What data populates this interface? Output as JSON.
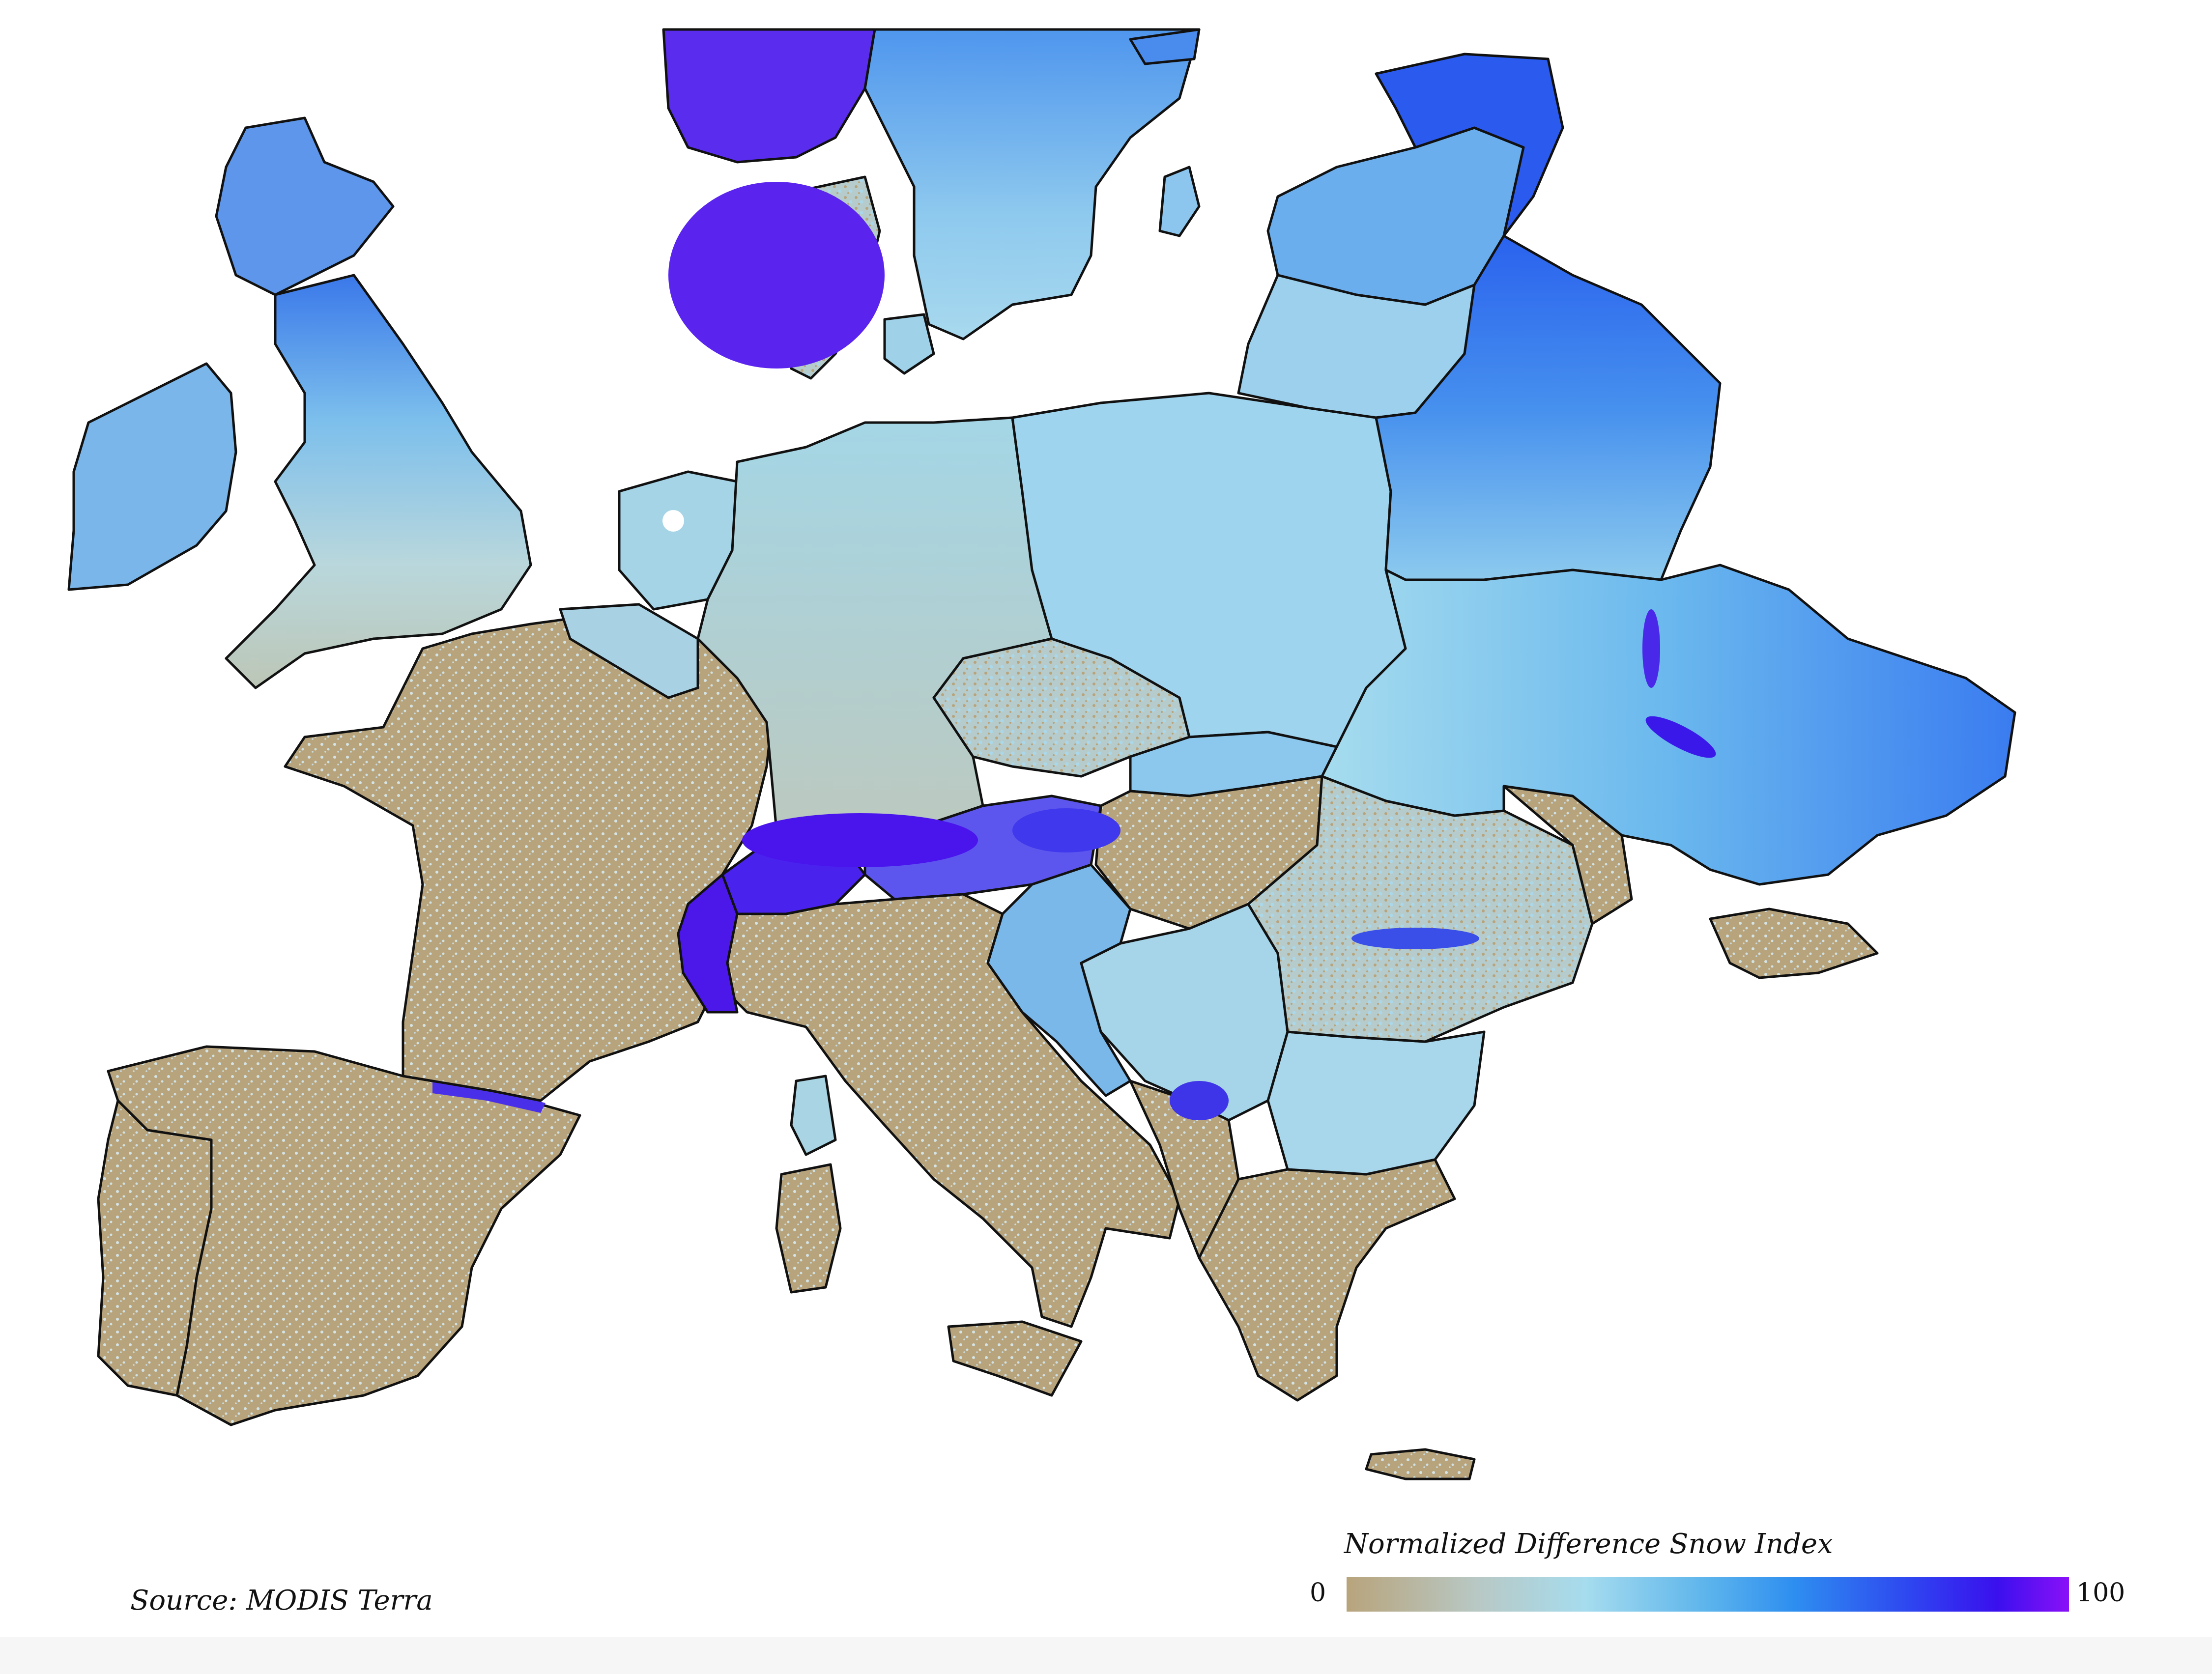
{
  "source": "Source: MODIS Terra",
  "legend": {
    "title": "Normalized Difference Snow Index",
    "min_label": "0",
    "max_label": "100",
    "range": [
      0,
      100
    ],
    "stops": [
      {
        "value": 0,
        "color": "#b8a47c"
      },
      {
        "value": 18,
        "color": "#b8c8c4"
      },
      {
        "value": 33,
        "color": "#a6dcee"
      },
      {
        "value": 50,
        "color": "#5cb4ec"
      },
      {
        "value": 62,
        "color": "#2e8ef0"
      },
      {
        "value": 78,
        "color": "#2e46f0"
      },
      {
        "value": 90,
        "color": "#3a10ee"
      },
      {
        "value": 100,
        "color": "#8a10f8"
      }
    ]
  },
  "colors": {
    "bare": "#b8a47c",
    "low_snow": "#aed8e8",
    "mid_snow": "#4aa4ec",
    "high_snow": "#3a6ef0",
    "deep_snow": "#5a18ee",
    "border": "#111111"
  }
}
